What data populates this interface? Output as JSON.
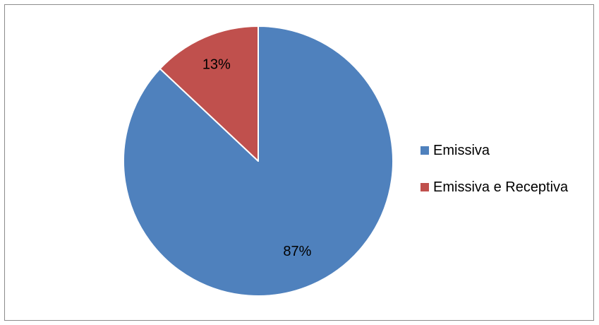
{
  "chart_data": {
    "type": "pie",
    "title": "",
    "categories": [
      "Emissiva",
      "Emissiva e Receptiva"
    ],
    "values": [
      87,
      13
    ],
    "labels": [
      "87%",
      "13%"
    ],
    "colors": [
      "#4f81bd",
      "#c0504d"
    ],
    "start_angle": "top",
    "direction": "clockwise",
    "legend_position": "right"
  }
}
